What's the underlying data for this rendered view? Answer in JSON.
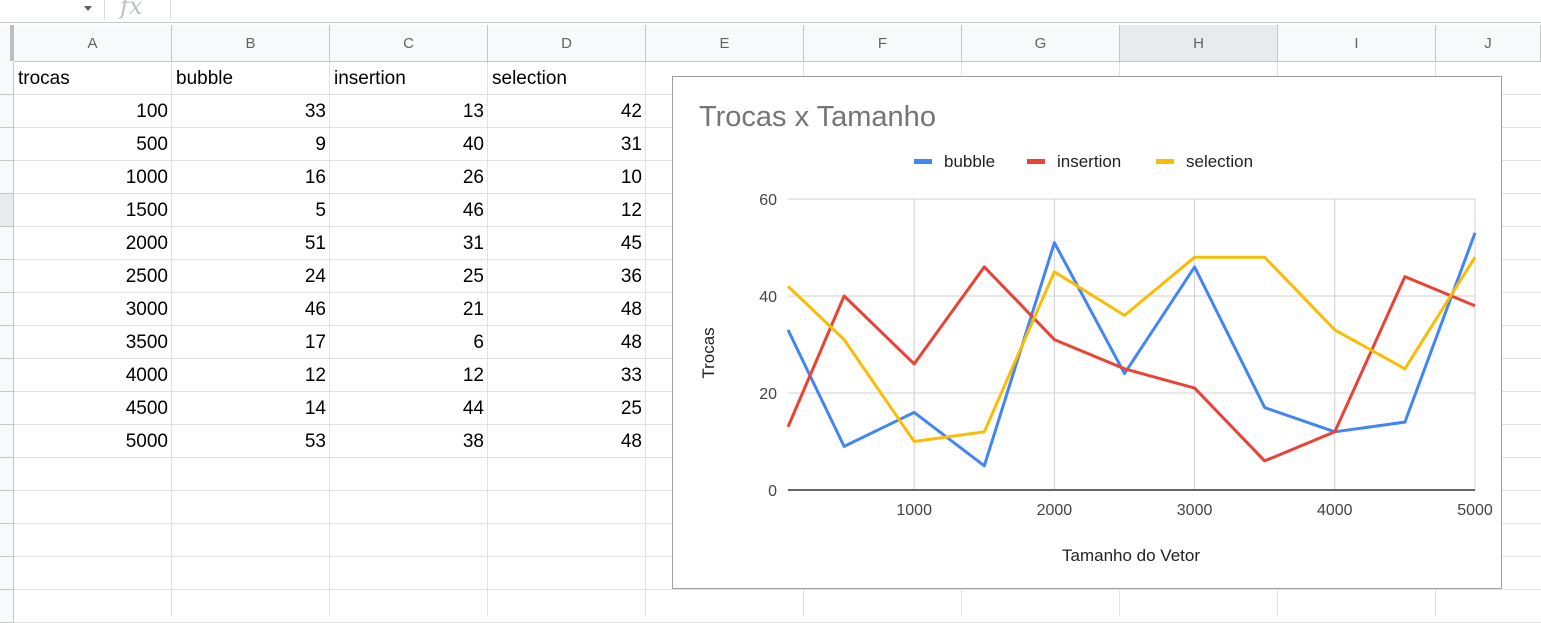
{
  "formula_bar": {
    "fx_label": "fx",
    "value": ""
  },
  "columns": [
    "A",
    "B",
    "C",
    "D",
    "E",
    "F",
    "G",
    "H",
    "I",
    "J"
  ],
  "selected_column": "H",
  "sheet": {
    "header": [
      "trocas",
      "bubble",
      "insertion",
      "selection"
    ],
    "rows": [
      [
        "100",
        "33",
        "13",
        "42"
      ],
      [
        "500",
        "9",
        "40",
        "31"
      ],
      [
        "1000",
        "16",
        "26",
        "10"
      ],
      [
        "1500",
        "5",
        "46",
        "12"
      ],
      [
        "2000",
        "51",
        "31",
        "45"
      ],
      [
        "2500",
        "24",
        "25",
        "36"
      ],
      [
        "3000",
        "46",
        "21",
        "48"
      ],
      [
        "3500",
        "17",
        "6",
        "48"
      ],
      [
        "4000",
        "12",
        "12",
        "33"
      ],
      [
        "4500",
        "14",
        "44",
        "25"
      ],
      [
        "5000",
        "53",
        "38",
        "48"
      ]
    ]
  },
  "chart_data": {
    "type": "line",
    "title": "Trocas x Tamanho",
    "xlabel": "Tamanho do Vetor",
    "ylabel": "Trocas",
    "x": [
      100,
      500,
      1000,
      1500,
      2000,
      2500,
      3000,
      3500,
      4000,
      4500,
      5000
    ],
    "xlim": [
      100,
      5000
    ],
    "ylim": [
      0,
      60
    ],
    "xticks": [
      1000,
      2000,
      3000,
      4000,
      5000
    ],
    "yticks": [
      0,
      20,
      40,
      60
    ],
    "grid": true,
    "legend_position": "top",
    "series": [
      {
        "name": "bubble",
        "color": "#4285f4",
        "values": [
          33,
          9,
          16,
          5,
          51,
          24,
          46,
          17,
          12,
          14,
          53
        ]
      },
      {
        "name": "insertion",
        "color": "#ea4335",
        "values": [
          13,
          40,
          26,
          46,
          31,
          25,
          21,
          6,
          12,
          44,
          38
        ]
      },
      {
        "name": "selection",
        "color": "#fbbc04",
        "values": [
          42,
          31,
          10,
          12,
          45,
          36,
          48,
          48,
          33,
          25,
          48
        ]
      }
    ]
  }
}
